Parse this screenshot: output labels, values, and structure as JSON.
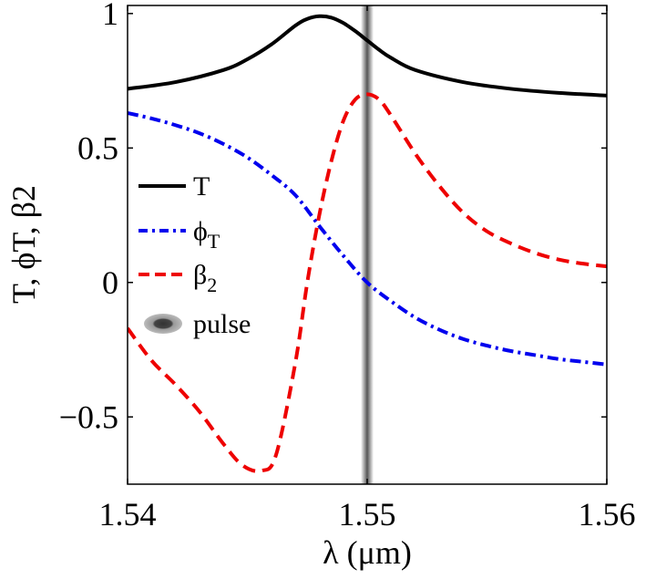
{
  "chart_data": {
    "type": "line",
    "title": "",
    "xlabel": "λ (μm)",
    "ylabel": "T, ϕT, β2",
    "xlim": [
      1.54,
      1.56
    ],
    "ylim": [
      -0.75,
      1.03
    ],
    "xticks": [
      {
        "value": 1.54,
        "label": "1.54"
      },
      {
        "value": 1.55,
        "label": "1.55"
      },
      {
        "value": 1.56,
        "label": "1.56"
      }
    ],
    "yticks": [
      {
        "value": -0.5,
        "label": "−0.5"
      },
      {
        "value": 0,
        "label": "0"
      },
      {
        "value": 0.5,
        "label": "0.5"
      },
      {
        "value": 1,
        "label": "1"
      }
    ],
    "grid": false,
    "legend_position": "left",
    "pulse": {
      "center": 1.55,
      "label": "pulse",
      "color": "#555555"
    },
    "series": [
      {
        "name": "T",
        "legend_main": "T",
        "legend_sub": "",
        "color": "#000000",
        "style": "solid",
        "x": [
          1.54,
          1.542,
          1.544,
          1.545,
          1.546,
          1.547,
          1.5475,
          1.548,
          1.5485,
          1.549,
          1.5495,
          1.55,
          1.5505,
          1.551,
          1.552,
          1.554,
          1.556,
          1.558,
          1.56
        ],
        "y": [
          0.72,
          0.745,
          0.79,
          0.83,
          0.885,
          0.955,
          0.98,
          0.99,
          0.985,
          0.965,
          0.935,
          0.9,
          0.865,
          0.835,
          0.79,
          0.745,
          0.72,
          0.705,
          0.695
        ]
      },
      {
        "name": "ϕT",
        "legend_main": "ϕ",
        "legend_sub": "T",
        "color": "#0000ee",
        "style": "dashdot",
        "x": [
          1.54,
          1.541,
          1.542,
          1.543,
          1.544,
          1.545,
          1.546,
          1.547,
          1.548,
          1.549,
          1.55,
          1.551,
          1.552,
          1.553,
          1.554,
          1.555,
          1.556,
          1.557,
          1.558,
          1.559,
          1.56
        ],
        "y": [
          0.63,
          0.61,
          0.585,
          0.555,
          0.515,
          0.465,
          0.4,
          0.325,
          0.21,
          0.1,
          0.0,
          -0.07,
          -0.13,
          -0.175,
          -0.21,
          -0.235,
          -0.255,
          -0.27,
          -0.285,
          -0.295,
          -0.305
        ]
      },
      {
        "name": "β2",
        "legend_main": "β",
        "legend_sub": "2",
        "color": "#ee0000",
        "style": "dashed",
        "x": [
          1.54,
          1.541,
          1.542,
          1.543,
          1.544,
          1.5448,
          1.5456,
          1.5462,
          1.547,
          1.5475,
          1.548,
          1.5485,
          1.549,
          1.5495,
          1.55,
          1.5505,
          1.551,
          1.552,
          1.553,
          1.554,
          1.555,
          1.556,
          1.557,
          1.558,
          1.559,
          1.56
        ],
        "y": [
          -0.17,
          -0.29,
          -0.38,
          -0.48,
          -0.6,
          -0.68,
          -0.7,
          -0.64,
          -0.3,
          0.0,
          0.25,
          0.45,
          0.6,
          0.68,
          0.7,
          0.68,
          0.62,
          0.48,
          0.36,
          0.26,
          0.19,
          0.145,
          0.11,
          0.085,
          0.07,
          0.06
        ]
      }
    ]
  }
}
